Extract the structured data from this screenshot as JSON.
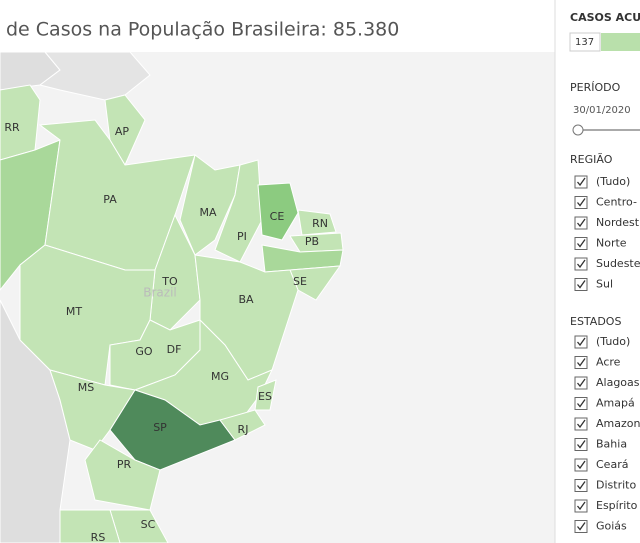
{
  "title": "de Casos na População Brasileira: 85.380",
  "legend": {
    "title": "CASOS ACU",
    "min": 137
  },
  "period": {
    "title": "PERÍODO",
    "start": "30/01/2020"
  },
  "region": {
    "title": "REGIÃO",
    "items": [
      "(Tudo)",
      "Centro-",
      "Nordest",
      "Norte",
      "Sudeste",
      "Sul"
    ]
  },
  "states": {
    "title": "ESTADOS",
    "items": [
      "(Tudo)",
      "Acre",
      "Alagoas",
      "Amapá",
      "Amazon",
      "Bahia",
      "Ceará",
      "Distrito",
      "Espírito",
      "Goiás"
    ]
  },
  "map": {
    "country": "Brazil",
    "labels": [
      "RR",
      "AP",
      "PA",
      "MA",
      "CE",
      "RN",
      "PB",
      "PI",
      "TO",
      "SE",
      "BA",
      "MT",
      "GO",
      "DF",
      "MG",
      "ES",
      "MS",
      "SP",
      "RJ",
      "PR",
      "SC",
      "RS"
    ]
  }
}
